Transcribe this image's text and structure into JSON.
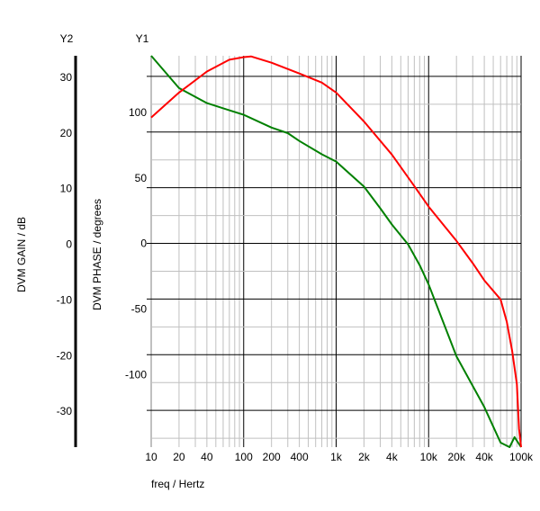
{
  "chart_data": {
    "type": "line",
    "x_scale": "log",
    "xlim": [
      10,
      100000
    ],
    "xlabel": "freq / Hertz",
    "x_ticks": [
      {
        "v": 10,
        "label": "10"
      },
      {
        "v": 20,
        "label": "20"
      },
      {
        "v": 40,
        "label": "40"
      },
      {
        "v": 100,
        "label": "100"
      },
      {
        "v": 200,
        "label": "200"
      },
      {
        "v": 400,
        "label": "400"
      },
      {
        "v": 1000,
        "label": "1k"
      },
      {
        "v": 2000,
        "label": "2k"
      },
      {
        "v": 4000,
        "label": "4k"
      },
      {
        "v": 10000,
        "label": "10k"
      },
      {
        "v": 20000,
        "label": "20k"
      },
      {
        "v": 40000,
        "label": "40k"
      },
      {
        "v": 100000,
        "label": "100k"
      }
    ],
    "grid": true,
    "y2_axis": {
      "name": "Y2",
      "label": "DVM GAIN / dB",
      "ylim": [
        -36.6,
        33.7
      ],
      "ticks": [
        30,
        20,
        10,
        0,
        -10,
        -20,
        -30
      ]
    },
    "y1_axis": {
      "name": "Y1",
      "label": "DVM PHASE / degrees",
      "ylim": [
        -155,
        143
      ],
      "ticks": [
        100,
        50,
        0,
        -50,
        -100
      ]
    },
    "series": [
      {
        "axis": "y2",
        "color": "#008000",
        "x": [
          10,
          20,
          40,
          70,
          100,
          200,
          300,
          400,
          700,
          1000,
          2000,
          3000,
          4000,
          6000,
          8000,
          10000,
          20000,
          40000,
          60000,
          75000,
          85000,
          100000
        ],
        "y": [
          33.7,
          27.9,
          25.2,
          23.9,
          23.1,
          20.8,
          19.8,
          18.4,
          16.0,
          14.7,
          10.2,
          6.3,
          3.4,
          -0.2,
          -3.9,
          -7.4,
          -20.3,
          -29.4,
          -35.8,
          -36.6,
          -34.8,
          -36.6
        ]
      },
      {
        "axis": "y1",
        "color": "#ff0000",
        "x": [
          10,
          20,
          40,
          70,
          100,
          120,
          200,
          400,
          700,
          1000,
          2000,
          4000,
          7000,
          10000,
          20000,
          30000,
          40000,
          60000,
          70000,
          80000,
          90000,
          95000,
          100000
        ],
        "y": [
          96,
          115,
          131,
          140,
          142,
          142.5,
          137.7,
          129.5,
          122.6,
          115,
          93,
          67.8,
          43.8,
          28.1,
          2,
          -15,
          -28,
          -42.5,
          -59.6,
          -81.5,
          -107,
          -141,
          -155
        ]
      }
    ]
  }
}
